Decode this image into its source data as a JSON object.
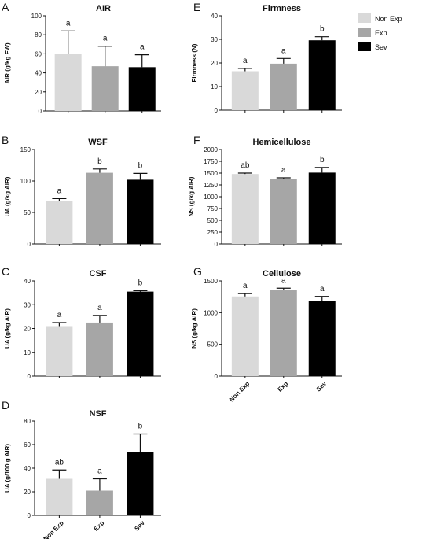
{
  "legend": [
    {
      "label": "Non Exp",
      "color": "#d9d9d9"
    },
    {
      "label": "Exp",
      "color": "#a6a6a6"
    },
    {
      "label": "Sev",
      "color": "#000000"
    }
  ],
  "chart_data": [
    {
      "letter": "A",
      "type": "bar",
      "title": "AIR",
      "ylabel": "AIR (g/kg FW)",
      "categories": [
        "Non Exp",
        "Exp",
        "Sev"
      ],
      "values": [
        60,
        47,
        46
      ],
      "errors": [
        24,
        21,
        13
      ],
      "sig": [
        "a",
        "a",
        "a"
      ],
      "ylim": [
        0,
        100
      ],
      "yticks": [
        0,
        20,
        40,
        60,
        80,
        100
      ],
      "show_xlabels": false
    },
    {
      "letter": "B",
      "type": "bar",
      "title": "WSF",
      "ylabel": "UA (g/kg AIR)",
      "categories": [
        "Non Exp",
        "Exp",
        "Sev"
      ],
      "values": [
        68,
        113,
        102
      ],
      "errors": [
        4,
        6,
        10
      ],
      "sig": [
        "a",
        "b",
        "b"
      ],
      "ylim": [
        0,
        150
      ],
      "yticks": [
        0,
        50,
        100,
        150
      ],
      "show_xlabels": false
    },
    {
      "letter": "C",
      "type": "bar",
      "title": "CSF",
      "ylabel": "UA (g/kg AIR)",
      "categories": [
        "Non Exp",
        "Exp",
        "Sev"
      ],
      "values": [
        21,
        22.5,
        35.5
      ],
      "errors": [
        1.5,
        3,
        0.4
      ],
      "sig": [
        "a",
        "a",
        "b"
      ],
      "ylim": [
        0,
        40
      ],
      "yticks": [
        0,
        10,
        20,
        30,
        40
      ],
      "show_xlabels": false
    },
    {
      "letter": "D",
      "type": "bar",
      "title": "NSF",
      "ylabel": "UA (g/100 g AIR)",
      "categories": [
        "Non Exp",
        "Exp",
        "Sev"
      ],
      "values": [
        31,
        21,
        54
      ],
      "errors": [
        7.5,
        10,
        15
      ],
      "sig": [
        "ab",
        "a",
        "b"
      ],
      "ylim": [
        0,
        80
      ],
      "yticks": [
        0,
        20,
        40,
        60,
        80
      ],
      "show_xlabels": true
    },
    {
      "letter": "E",
      "type": "bar",
      "title": "Firmness",
      "ylabel": "Firmness (N)",
      "categories": [
        "Non Exp",
        "Exp",
        "Sev"
      ],
      "values": [
        16.5,
        19.7,
        29.6
      ],
      "errors": [
        1.2,
        2.2,
        1.5
      ],
      "sig": [
        "a",
        "a",
        "b"
      ],
      "ylim": [
        0,
        40
      ],
      "yticks": [
        0,
        10,
        20,
        30,
        40
      ],
      "show_xlabels": false
    },
    {
      "letter": "F",
      "type": "bar",
      "title": "Hemicellulose",
      "ylabel": "NS (g/kg AIR)",
      "categories": [
        "Non Exp",
        "Exp",
        "Sev"
      ],
      "values": [
        1480,
        1375,
        1510
      ],
      "errors": [
        20,
        25,
        110
      ],
      "sig": [
        "ab",
        "a",
        "b"
      ],
      "ylim": [
        0,
        2000
      ],
      "yticks": [
        0,
        250,
        500,
        750,
        1000,
        1250,
        1500,
        1750,
        2000
      ],
      "show_xlabels": false
    },
    {
      "letter": "G",
      "type": "bar",
      "title": "Cellulose",
      "ylabel": "NS (g/kg AIR)",
      "categories": [
        "Non Exp",
        "Exp",
        "Sev"
      ],
      "values": [
        1255,
        1355,
        1185
      ],
      "errors": [
        45,
        30,
        70
      ],
      "sig": [
        "a",
        "a",
        "a"
      ],
      "ylim": [
        0,
        1500
      ],
      "yticks": [
        0,
        500,
        1000,
        1500
      ],
      "show_xlabels": true
    }
  ]
}
